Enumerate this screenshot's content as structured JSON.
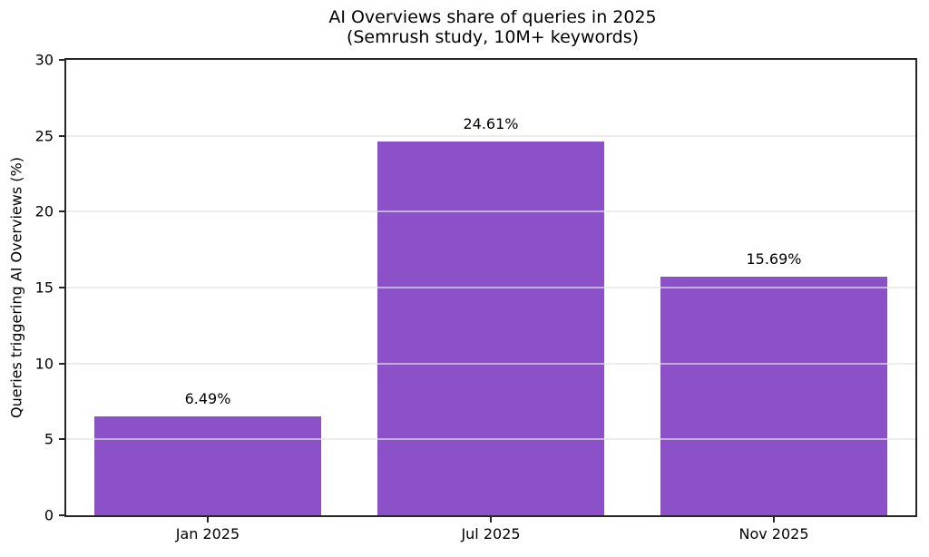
{
  "title": {
    "line1": "AI Overviews share of queries in 2025",
    "line2": "(Semrush study, 10M+ keywords)"
  },
  "chart_data": {
    "type": "bar",
    "title": "AI Overviews share of queries in 2025 (Semrush study, 10M+ keywords)",
    "categories": [
      "Jan 2025",
      "Jul 2025",
      "Nov 2025"
    ],
    "values": [
      6.49,
      24.61,
      15.69
    ],
    "value_labels": [
      "6.49%",
      "24.61%",
      "15.69%"
    ],
    "xlabel": "",
    "ylabel": "Queries triggering AI Overviews (%)",
    "ylim": [
      0,
      30
    ],
    "yticks": [
      0,
      5,
      10,
      15,
      20,
      25,
      30
    ],
    "grid": "horizontal, drawn above bars",
    "legend": "none",
    "bar_width_fraction": 0.8
  },
  "colors": {
    "bar": "#8c50c8",
    "axis": "#262626",
    "gridline": "#e4e4e4",
    "background": "#ffffff",
    "text": "#000000"
  }
}
